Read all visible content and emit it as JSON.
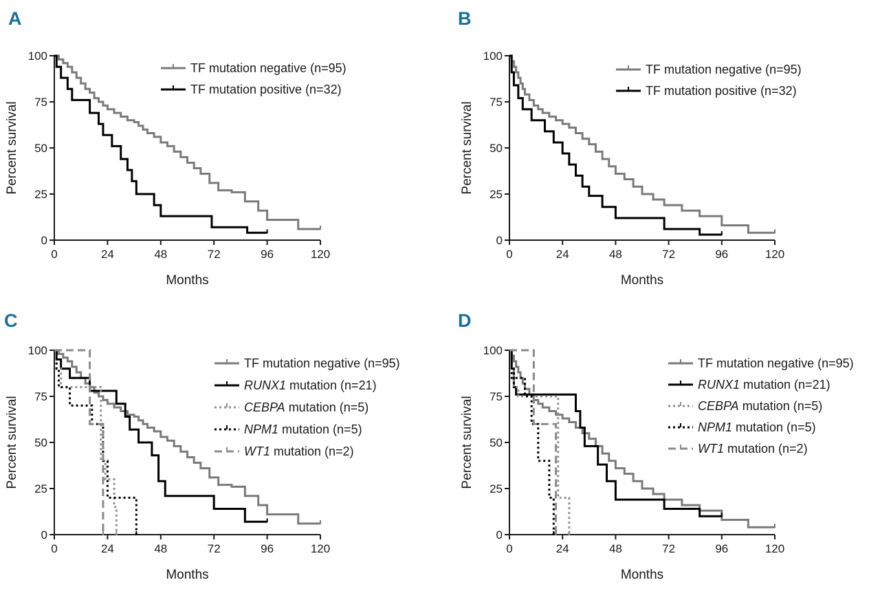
{
  "panels": [
    {
      "letter": "A",
      "xlabel": "Months",
      "ylabel": "Percent survival",
      "legend": [
        {
          "label": "TF mutation negative (n=95)"
        },
        {
          "label": "TF mutation positive (n=32)"
        }
      ]
    },
    {
      "letter": "B",
      "xlabel": "Months",
      "ylabel": "Percent survival",
      "legend": [
        {
          "label": "TF mutation negative (n=95)"
        },
        {
          "label": "TF mutation positive (n=32)"
        }
      ]
    },
    {
      "letter": "C",
      "xlabel": "Months",
      "ylabel": "Percent survival",
      "legend": [
        {
          "label": "TF mutation negative (n=95)"
        },
        {
          "gene": "RUNX1",
          "label": " mutation (n=21)"
        },
        {
          "gene": "CEBPA",
          "label": " mutation (n=5)"
        },
        {
          "gene": "NPM1",
          "label": " mutation (n=5)"
        },
        {
          "gene": "WT1",
          "label": " mutation (n=2)"
        }
      ]
    },
    {
      "letter": "D",
      "xlabel": "Months",
      "ylabel": "Percent survival",
      "legend": [
        {
          "label": "TF mutation negative (n=95)"
        },
        {
          "gene": "RUNX1",
          "label": " mutation (n=21)"
        },
        {
          "gene": "CEBPA",
          "label": " mutation (n=5)"
        },
        {
          "gene": "NPM1",
          "label": " mutation (n=5)"
        },
        {
          "gene": "WT1",
          "label": " mutation (n=2)"
        }
      ]
    }
  ],
  "chart_data": [
    {
      "panel": "A",
      "type": "line",
      "subtype": "kaplan-meier step",
      "xlabel": "Months",
      "ylabel": "Percent survival",
      "xlim": [
        0,
        120
      ],
      "ylim": [
        0,
        100
      ],
      "xticks": [
        0,
        24,
        48,
        72,
        96,
        120
      ],
      "yticks": [
        0,
        25,
        50,
        75,
        100
      ],
      "series": [
        {
          "name": "TF mutation negative (n=95)",
          "color": "#7a7a7a",
          "dash": "solid",
          "x": [
            0,
            2,
            4,
            6,
            8,
            10,
            12,
            14,
            16,
            18,
            20,
            22,
            24,
            27,
            30,
            33,
            36,
            38,
            40,
            42,
            45,
            48,
            51,
            54,
            57,
            60,
            63,
            66,
            70,
            74,
            80,
            86,
            92,
            96,
            110,
            120
          ],
          "y": [
            100,
            98,
            96,
            94,
            91,
            88,
            85,
            82,
            80,
            77,
            75,
            73,
            71,
            69,
            67,
            65,
            64,
            62,
            60,
            58,
            56,
            53,
            51,
            48,
            45,
            42,
            39,
            36,
            31,
            27,
            26,
            21,
            16,
            11,
            6,
            6
          ]
        },
        {
          "name": "TF mutation positive (n=32)",
          "color": "#000000",
          "dash": "solid",
          "x": [
            0,
            1,
            3,
            6,
            8,
            16,
            20,
            22,
            26,
            30,
            33,
            35,
            37,
            45,
            48,
            54,
            71,
            87,
            96
          ],
          "y": [
            100,
            94,
            88,
            82,
            76,
            69,
            63,
            57,
            51,
            44,
            38,
            32,
            25,
            19,
            13,
            13,
            7,
            4,
            4
          ]
        }
      ]
    },
    {
      "panel": "B",
      "type": "line",
      "subtype": "kaplan-meier step",
      "xlabel": "Months",
      "ylabel": "Percent survival",
      "xlim": [
        0,
        120
      ],
      "ylim": [
        0,
        100
      ],
      "xticks": [
        0,
        24,
        48,
        72,
        96,
        120
      ],
      "yticks": [
        0,
        25,
        50,
        75,
        100
      ],
      "series": [
        {
          "name": "TF mutation negative (n=95)",
          "color": "#7a7a7a",
          "dash": "solid",
          "x": [
            0,
            1,
            2,
            3,
            4,
            5,
            6,
            7,
            9,
            11,
            13,
            15,
            18,
            21,
            24,
            27,
            30,
            33,
            36,
            39,
            42,
            45,
            48,
            52,
            56,
            60,
            65,
            70,
            78,
            86,
            96,
            108,
            120
          ],
          "y": [
            100,
            97,
            94,
            91,
            88,
            85,
            82,
            79,
            76,
            73,
            71,
            69,
            67,
            65,
            63,
            61,
            58,
            55,
            52,
            48,
            44,
            40,
            36,
            33,
            29,
            25,
            22,
            19,
            16,
            13,
            8,
            4,
            4
          ]
        },
        {
          "name": "TF mutation positive (n=32)",
          "color": "#000000",
          "dash": "solid",
          "x": [
            0,
            1,
            2,
            4,
            6,
            10,
            16,
            20,
            24,
            27,
            30,
            33,
            36,
            42,
            48,
            56,
            70,
            86,
            96
          ],
          "y": [
            100,
            91,
            84,
            77,
            71,
            65,
            59,
            53,
            47,
            41,
            35,
            29,
            24,
            18,
            12,
            12,
            6,
            3,
            3
          ]
        }
      ]
    },
    {
      "panel": "C",
      "type": "line",
      "subtype": "kaplan-meier step",
      "xlabel": "Months",
      "ylabel": "Percent survival",
      "xlim": [
        0,
        120
      ],
      "ylim": [
        0,
        100
      ],
      "xticks": [
        0,
        24,
        48,
        72,
        96,
        120
      ],
      "yticks": [
        0,
        25,
        50,
        75,
        100
      ],
      "series": [
        {
          "name": "TF mutation negative (n=95)",
          "color": "#7a7a7a",
          "dash": "solid",
          "x": [
            0,
            2,
            4,
            6,
            8,
            10,
            12,
            14,
            16,
            18,
            20,
            22,
            24,
            27,
            30,
            33,
            36,
            38,
            40,
            42,
            45,
            48,
            51,
            54,
            57,
            60,
            63,
            66,
            70,
            74,
            80,
            86,
            92,
            96,
            110,
            120
          ],
          "y": [
            100,
            98,
            96,
            94,
            91,
            88,
            85,
            82,
            80,
            77,
            75,
            73,
            71,
            69,
            67,
            65,
            64,
            62,
            60,
            58,
            56,
            53,
            51,
            48,
            45,
            42,
            39,
            36,
            31,
            27,
            26,
            21,
            16,
            11,
            6,
            6
          ]
        },
        {
          "name": "RUNX1 mutation (n=21)",
          "color": "#000000",
          "dash": "solid",
          "x": [
            0,
            1,
            3,
            7,
            16,
            28,
            32,
            34,
            38,
            44,
            47,
            50,
            66,
            72,
            86,
            96
          ],
          "y": [
            100,
            95,
            90,
            85,
            78,
            71,
            64,
            57,
            50,
            43,
            29,
            21,
            21,
            14,
            7,
            7
          ]
        },
        {
          "name": "CEBPA mutation (n=5)",
          "color": "#909090",
          "dash": "dotted",
          "x": [
            0,
            1,
            3,
            21,
            23,
            27,
            28
          ],
          "y": [
            100,
            90,
            80,
            40,
            30,
            15,
            0
          ]
        },
        {
          "name": "NPM1 mutation (n=5)",
          "color": "#000000",
          "dash": "dotted",
          "x": [
            0,
            1,
            2,
            7,
            17,
            22,
            24,
            30,
            37
          ],
          "y": [
            100,
            90,
            80,
            70,
            60,
            40,
            20,
            20,
            0
          ]
        },
        {
          "name": "WT1 mutation (n=2)",
          "color": "#8a8a8a",
          "dash": "dashed",
          "x": [
            0,
            16,
            21,
            22
          ],
          "y": [
            100,
            60,
            60,
            0
          ]
        }
      ]
    },
    {
      "panel": "D",
      "type": "line",
      "subtype": "kaplan-meier step",
      "xlabel": "Months",
      "ylabel": "Percent survival",
      "xlim": [
        0,
        120
      ],
      "ylim": [
        0,
        100
      ],
      "xticks": [
        0,
        24,
        48,
        72,
        96,
        120
      ],
      "yticks": [
        0,
        25,
        50,
        75,
        100
      ],
      "series": [
        {
          "name": "TF mutation negative (n=95)",
          "color": "#7a7a7a",
          "dash": "solid",
          "x": [
            0,
            1,
            2,
            3,
            4,
            5,
            6,
            7,
            9,
            11,
            13,
            15,
            18,
            21,
            24,
            27,
            30,
            33,
            36,
            39,
            42,
            45,
            48,
            52,
            56,
            60,
            65,
            70,
            78,
            86,
            96,
            108,
            120
          ],
          "y": [
            100,
            97,
            94,
            91,
            88,
            85,
            82,
            79,
            76,
            73,
            71,
            69,
            67,
            65,
            63,
            61,
            58,
            55,
            52,
            48,
            44,
            40,
            36,
            33,
            29,
            25,
            22,
            19,
            16,
            13,
            8,
            4,
            4
          ]
        },
        {
          "name": "RUNX1 mutation (n=21)",
          "color": "#000000",
          "dash": "solid",
          "x": [
            0,
            1,
            2,
            3,
            10,
            30,
            32,
            34,
            40,
            44,
            48,
            70,
            86,
            96
          ],
          "y": [
            100,
            90,
            80,
            76,
            76,
            67,
            58,
            48,
            38,
            29,
            19,
            14,
            10,
            10
          ]
        },
        {
          "name": "CEBPA mutation (n=5)",
          "color": "#909090",
          "dash": "dotted",
          "x": [
            0,
            1,
            2,
            4,
            22,
            27
          ],
          "y": [
            100,
            90,
            80,
            75,
            20,
            0
          ]
        },
        {
          "name": "NPM1 mutation (n=5)",
          "color": "#000000",
          "dash": "dotted",
          "x": [
            0,
            1,
            7,
            10,
            13,
            18,
            20
          ],
          "y": [
            100,
            85,
            75,
            60,
            40,
            20,
            0
          ]
        },
        {
          "name": "WT1 mutation (n=2)",
          "color": "#8a8a8a",
          "dash": "dashed",
          "x": [
            0,
            11,
            21
          ],
          "y": [
            100,
            60,
            0
          ]
        }
      ]
    }
  ]
}
